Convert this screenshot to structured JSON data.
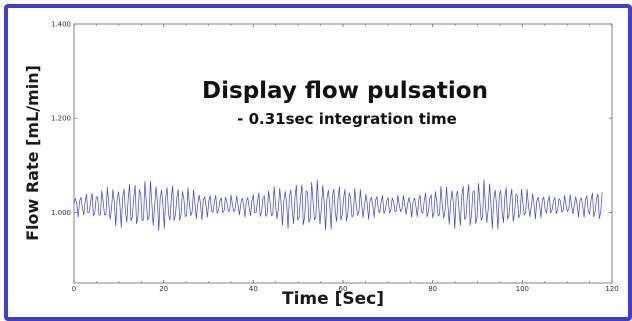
{
  "colors": {
    "frame": "#3b3fd6",
    "series": "#3a3fd4",
    "axis": "#666666"
  },
  "chart_data": {
    "type": "line",
    "title": "Display flow pulsation",
    "subtitle": "- 0.31sec integration time",
    "xlabel": "Time [Sec]",
    "ylabel": "Flow Rate [mL/min]",
    "xlim": [
      0,
      120
    ],
    "ylim": [
      0.85,
      1.4
    ],
    "xticks": [
      0,
      20,
      40,
      60,
      80,
      100,
      120
    ],
    "yticks": [
      1.0,
      1.2,
      1.4
    ],
    "x_tick_labels": [
      "0",
      "20",
      "40",
      "60",
      "80",
      "100",
      "120"
    ],
    "y_tick_labels": [
      "1.000",
      "1.200",
      "1.400"
    ],
    "grid": false,
    "legend": "none",
    "series": [
      {
        "sampling_interval_s": 0.31,
        "x_start": 0,
        "x_end": 118,
        "baseline": 1.015,
        "oscillation_period_s": 1.2,
        "amplitude_range": [
          0.02,
          0.05
        ],
        "envelope_period_s": 37
      }
    ]
  }
}
